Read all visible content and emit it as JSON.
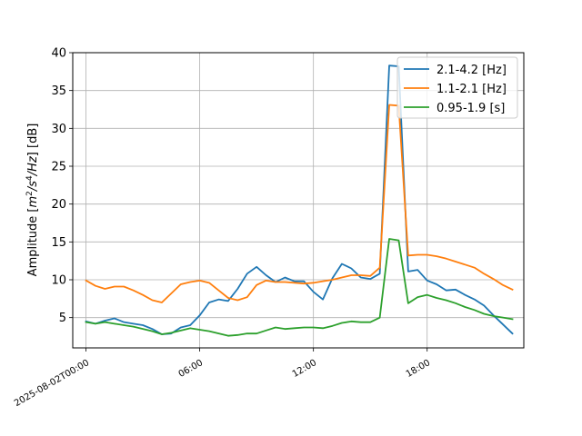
{
  "chart_data": {
    "type": "line",
    "title": "",
    "xlabel": "",
    "ylabel": "Amplitude [m²/s⁴/Hz] [dB]",
    "ylabel_parts": {
      "prefix": "Amplitude [",
      "m": "m",
      "sq": "2",
      "slash1": "/",
      "s": "s",
      "four": "4",
      "slash2": "/",
      "hz": "Hz",
      "suffix": "] [dB]"
    },
    "x_unit": "hours from 2025-08-02T00:00",
    "xlim": [
      -0.7,
      23.1
    ],
    "ylim": [
      1,
      40
    ],
    "grid": true,
    "legend_position": "top-right",
    "x_ticks": [
      {
        "value": 0,
        "label": "2025-08-02T00:00"
      },
      {
        "value": 6,
        "label": "06:00"
      },
      {
        "value": 12,
        "label": "12:00"
      },
      {
        "value": 18,
        "label": "18:00"
      }
    ],
    "y_ticks": [
      5,
      10,
      15,
      20,
      25,
      30,
      35,
      40
    ],
    "series": [
      {
        "name": "2.1-4.2 [Hz]",
        "color": "#1f77b4",
        "points": [
          [
            0,
            4.5
          ],
          [
            0.5,
            4.2
          ],
          [
            1,
            4.6
          ],
          [
            1.5,
            4.9
          ],
          [
            2,
            4.4
          ],
          [
            2.5,
            4.2
          ],
          [
            3,
            4.0
          ],
          [
            3.5,
            3.5
          ],
          [
            4,
            2.8
          ],
          [
            4.5,
            2.9
          ],
          [
            5,
            3.7
          ],
          [
            5.5,
            4.0
          ],
          [
            6,
            5.3
          ],
          [
            6.5,
            7.0
          ],
          [
            7,
            7.4
          ],
          [
            7.5,
            7.2
          ],
          [
            8,
            8.8
          ],
          [
            8.5,
            10.8
          ],
          [
            9,
            11.7
          ],
          [
            9.5,
            10.6
          ],
          [
            10,
            9.7
          ],
          [
            10.5,
            10.3
          ],
          [
            11,
            9.8
          ],
          [
            11.5,
            9.8
          ],
          [
            12,
            8.4
          ],
          [
            12.5,
            7.4
          ],
          [
            13,
            10.2
          ],
          [
            13.5,
            12.1
          ],
          [
            14,
            11.5
          ],
          [
            14.5,
            10.3
          ],
          [
            15,
            10.1
          ],
          [
            15.5,
            10.8
          ],
          [
            16,
            38.3
          ],
          [
            16.5,
            38.2
          ],
          [
            17,
            11.1
          ],
          [
            17.5,
            11.3
          ],
          [
            18,
            9.9
          ],
          [
            18.5,
            9.4
          ],
          [
            19,
            8.6
          ],
          [
            19.5,
            8.7
          ],
          [
            20,
            8.0
          ],
          [
            20.5,
            7.4
          ],
          [
            21,
            6.6
          ],
          [
            21.5,
            5.3
          ],
          [
            22,
            4.1
          ],
          [
            22.5,
            2.9
          ]
        ]
      },
      {
        "name": "1.1-2.1 [Hz]",
        "color": "#ff7f0e",
        "points": [
          [
            0,
            9.9
          ],
          [
            0.5,
            9.2
          ],
          [
            1,
            8.8
          ],
          [
            1.5,
            9.1
          ],
          [
            2,
            9.1
          ],
          [
            2.5,
            8.6
          ],
          [
            3,
            8.0
          ],
          [
            3.5,
            7.3
          ],
          [
            4,
            7.0
          ],
          [
            4.5,
            8.2
          ],
          [
            5,
            9.4
          ],
          [
            5.5,
            9.7
          ],
          [
            6,
            9.9
          ],
          [
            6.5,
            9.6
          ],
          [
            7,
            8.6
          ],
          [
            7.5,
            7.6
          ],
          [
            8,
            7.3
          ],
          [
            8.5,
            7.7
          ],
          [
            9,
            9.3
          ],
          [
            9.5,
            9.9
          ],
          [
            10,
            9.7
          ],
          [
            10.5,
            9.7
          ],
          [
            11,
            9.6
          ],
          [
            11.5,
            9.5
          ],
          [
            12,
            9.6
          ],
          [
            12.5,
            9.8
          ],
          [
            13,
            10.0
          ],
          [
            13.5,
            10.3
          ],
          [
            14,
            10.6
          ],
          [
            14.5,
            10.6
          ],
          [
            15,
            10.5
          ],
          [
            15.5,
            11.6
          ],
          [
            16,
            33.1
          ],
          [
            16.5,
            33.0
          ],
          [
            17,
            13.2
          ],
          [
            17.5,
            13.3
          ],
          [
            18,
            13.3
          ],
          [
            18.5,
            13.1
          ],
          [
            19,
            12.8
          ],
          [
            19.5,
            12.4
          ],
          [
            20,
            12.0
          ],
          [
            20.5,
            11.6
          ],
          [
            21,
            10.8
          ],
          [
            21.5,
            10.1
          ],
          [
            22,
            9.3
          ],
          [
            22.5,
            8.7
          ]
        ]
      },
      {
        "name": "0.95-1.9 [s]",
        "color": "#2ca02c",
        "points": [
          [
            0,
            4.4
          ],
          [
            0.5,
            4.2
          ],
          [
            1,
            4.4
          ],
          [
            1.5,
            4.2
          ],
          [
            2,
            4.0
          ],
          [
            2.5,
            3.8
          ],
          [
            3,
            3.5
          ],
          [
            3.5,
            3.2
          ],
          [
            4,
            2.8
          ],
          [
            4.5,
            3.0
          ],
          [
            5,
            3.3
          ],
          [
            5.5,
            3.6
          ],
          [
            6,
            3.4
          ],
          [
            6.5,
            3.2
          ],
          [
            7,
            2.9
          ],
          [
            7.5,
            2.6
          ],
          [
            8,
            2.7
          ],
          [
            8.5,
            2.9
          ],
          [
            9,
            2.9
          ],
          [
            9.5,
            3.3
          ],
          [
            10,
            3.7
          ],
          [
            10.5,
            3.5
          ],
          [
            11,
            3.6
          ],
          [
            11.5,
            3.7
          ],
          [
            12,
            3.7
          ],
          [
            12.5,
            3.6
          ],
          [
            13,
            3.9
          ],
          [
            13.5,
            4.3
          ],
          [
            14,
            4.5
          ],
          [
            14.5,
            4.4
          ],
          [
            15,
            4.4
          ],
          [
            15.5,
            5.0
          ],
          [
            16,
            15.4
          ],
          [
            16.5,
            15.2
          ],
          [
            17,
            6.9
          ],
          [
            17.5,
            7.7
          ],
          [
            18,
            8.0
          ],
          [
            18.5,
            7.6
          ],
          [
            19,
            7.3
          ],
          [
            19.5,
            6.9
          ],
          [
            20,
            6.4
          ],
          [
            20.5,
            6.0
          ],
          [
            21,
            5.5
          ],
          [
            21.5,
            5.2
          ],
          [
            22,
            5.0
          ],
          [
            22.5,
            4.8
          ]
        ]
      }
    ]
  }
}
